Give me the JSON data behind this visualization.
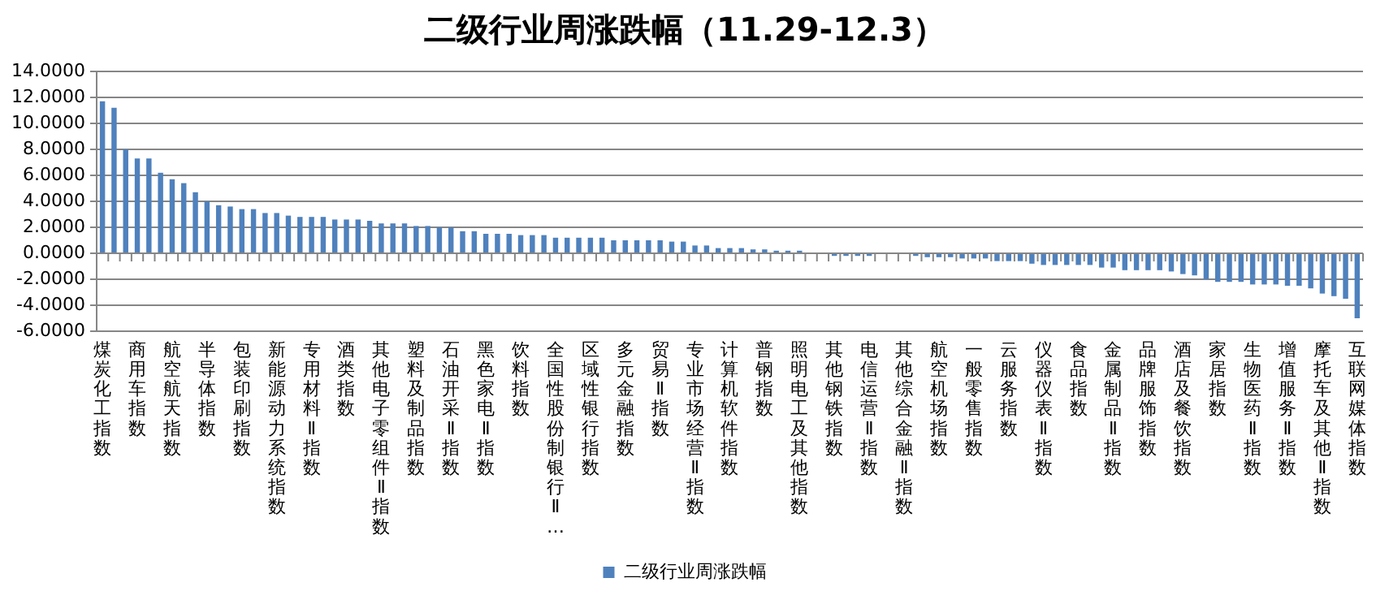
{
  "chart_data": {
    "type": "bar",
    "title": "二级行业周涨跌幅（11.29-12.3）",
    "categories": [
      "煤炭化工指数",
      null,
      null,
      "商用车指数",
      null,
      null,
      "航空航天指数",
      null,
      null,
      "半导体指数",
      null,
      null,
      "包装印刷指数",
      null,
      null,
      "新能源动力系统指数",
      null,
      null,
      "专用材料Ⅱ指数",
      null,
      null,
      "酒类指数",
      null,
      null,
      "其他电子零组件Ⅱ指数",
      null,
      null,
      "塑料及制品指数",
      null,
      null,
      "石油开采Ⅱ指数",
      null,
      null,
      "黑色家电Ⅱ指数",
      null,
      null,
      "饮料指数",
      null,
      null,
      "全国性股份制银行Ⅱ…",
      null,
      null,
      "区域性银行指数",
      null,
      null,
      "多元金融指数",
      null,
      null,
      "贸易Ⅱ指数",
      null,
      null,
      "专业市场经营Ⅱ指数",
      null,
      null,
      "计算机软件指数",
      null,
      null,
      "普钢指数",
      null,
      null,
      "照明电工及其他指数",
      null,
      null,
      "其他钢铁指数",
      null,
      null,
      "电信运营Ⅱ指数",
      null,
      null,
      "其他综合金融Ⅱ指数",
      null,
      null,
      "航空机场指数",
      null,
      null,
      "一般零售指数",
      null,
      null,
      "云服务指数",
      null,
      null,
      "仪器仪表Ⅱ指数",
      null,
      null,
      "食品指数",
      null,
      null,
      "金属制品Ⅱ指数",
      null,
      null,
      "品牌服饰指数",
      null,
      null,
      "酒店及餐饮指数",
      null,
      null,
      "家居指数",
      null,
      null,
      "生物医药Ⅱ指数",
      null,
      null,
      "增值服务Ⅱ指数",
      null,
      null,
      "摩托车及其他Ⅱ指数",
      null,
      null,
      "互联网媒体指数"
    ],
    "series": [
      {
        "name": "二级行业周涨跌幅",
        "color": "#4f81bd",
        "values": [
          11.7,
          11.2,
          8.0,
          7.3,
          7.3,
          6.2,
          5.7,
          5.4,
          4.7,
          4.0,
          3.7,
          3.6,
          3.4,
          3.4,
          3.1,
          3.1,
          2.9,
          2.8,
          2.8,
          2.8,
          2.6,
          2.6,
          2.6,
          2.5,
          2.3,
          2.3,
          2.3,
          2.1,
          2.1,
          2.0,
          2.0,
          1.7,
          1.7,
          1.5,
          1.5,
          1.5,
          1.4,
          1.4,
          1.4,
          1.2,
          1.2,
          1.2,
          1.2,
          1.2,
          1.0,
          1.0,
          1.0,
          1.0,
          1.0,
          0.9,
          0.9,
          0.6,
          0.6,
          0.4,
          0.4,
          0.4,
          0.3,
          0.3,
          0.2,
          0.2,
          0.2,
          0.0,
          0.0,
          -0.2,
          -0.2,
          -0.2,
          -0.2,
          0.0,
          0.0,
          0.0,
          -0.2,
          -0.3,
          -0.3,
          -0.3,
          -0.4,
          -0.4,
          -0.4,
          -0.6,
          -0.6,
          -0.6,
          -0.8,
          -0.9,
          -0.9,
          -0.9,
          -0.9,
          -0.9,
          -1.1,
          -1.1,
          -1.3,
          -1.3,
          -1.3,
          -1.3,
          -1.4,
          -1.6,
          -1.7,
          -2.0,
          -2.2,
          -2.2,
          -2.2,
          -2.4,
          -2.4,
          -2.4,
          -2.5,
          -2.5,
          -2.7,
          -3.1,
          -3.3,
          -3.5,
          -5.0
        ]
      }
    ],
    "ylim": [
      -6,
      14
    ],
    "yticks": [
      {
        "value": -6,
        "label": "-6.0000"
      },
      {
        "value": -4,
        "label": "-4.0000"
      },
      {
        "value": -2,
        "label": "-2.0000"
      },
      {
        "value": 0,
        "label": "0.0000"
      },
      {
        "value": 2,
        "label": "2.0000"
      },
      {
        "value": 4,
        "label": "4.0000"
      },
      {
        "value": 6,
        "label": "6.0000"
      },
      {
        "value": 8,
        "label": "8.0000"
      },
      {
        "value": 10,
        "label": "10.0000"
      },
      {
        "value": 12,
        "label": "12.0000"
      },
      {
        "value": 14,
        "label": "14.0000"
      }
    ],
    "grid": "y",
    "legend": "bottom"
  }
}
